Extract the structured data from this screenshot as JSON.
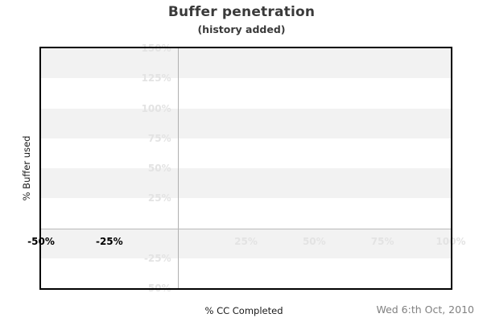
{
  "page": {
    "date_label": "Wed 6:th Oct, 2010"
  },
  "chart_data": {
    "type": "line",
    "title": "Buffer penetration",
    "subtitle": "(history added)",
    "xlabel": "% CC Completed",
    "ylabel": "% Buffer used",
    "xlim": [
      -50,
      100
    ],
    "ylim": [
      -50,
      150
    ],
    "x_ticks": [
      {
        "value": -50,
        "label": "-50%",
        "style": "past"
      },
      {
        "value": -25,
        "label": "-25%",
        "style": "past"
      },
      {
        "value": 25,
        "label": "25%",
        "style": "future"
      },
      {
        "value": 50,
        "label": "50%",
        "style": "future"
      },
      {
        "value": 75,
        "label": "75%",
        "style": "future"
      },
      {
        "value": 100,
        "label": "100%",
        "style": "future"
      }
    ],
    "y_ticks": [
      {
        "value": 150,
        "label": "150%"
      },
      {
        "value": 125,
        "label": "125%"
      },
      {
        "value": 100,
        "label": "100%"
      },
      {
        "value": 75,
        "label": "75%"
      },
      {
        "value": 50,
        "label": "50%"
      },
      {
        "value": 25,
        "label": "25%"
      },
      {
        "value": -25,
        "label": "-25%"
      },
      {
        "value": -50,
        "label": "-50%"
      }
    ],
    "zero_lines": {
      "x": 0,
      "y": 0
    },
    "stripes": {
      "band_size": 25,
      "colors": [
        "#f2f2f2",
        "#ffffff"
      ]
    },
    "series": [],
    "legend_position": "none",
    "grid": "alternating horizontal bands every 25%"
  },
  "colors": {
    "stripe_gray": "#f2f2f2",
    "faint_label": "#e3e3e3",
    "zero_line": "#b0b0b0",
    "border": "#000000",
    "title_text": "#3a3a3a",
    "axis_text": "#1a1a1a",
    "date_text": "#808080",
    "past_tick_text": "#000000"
  }
}
